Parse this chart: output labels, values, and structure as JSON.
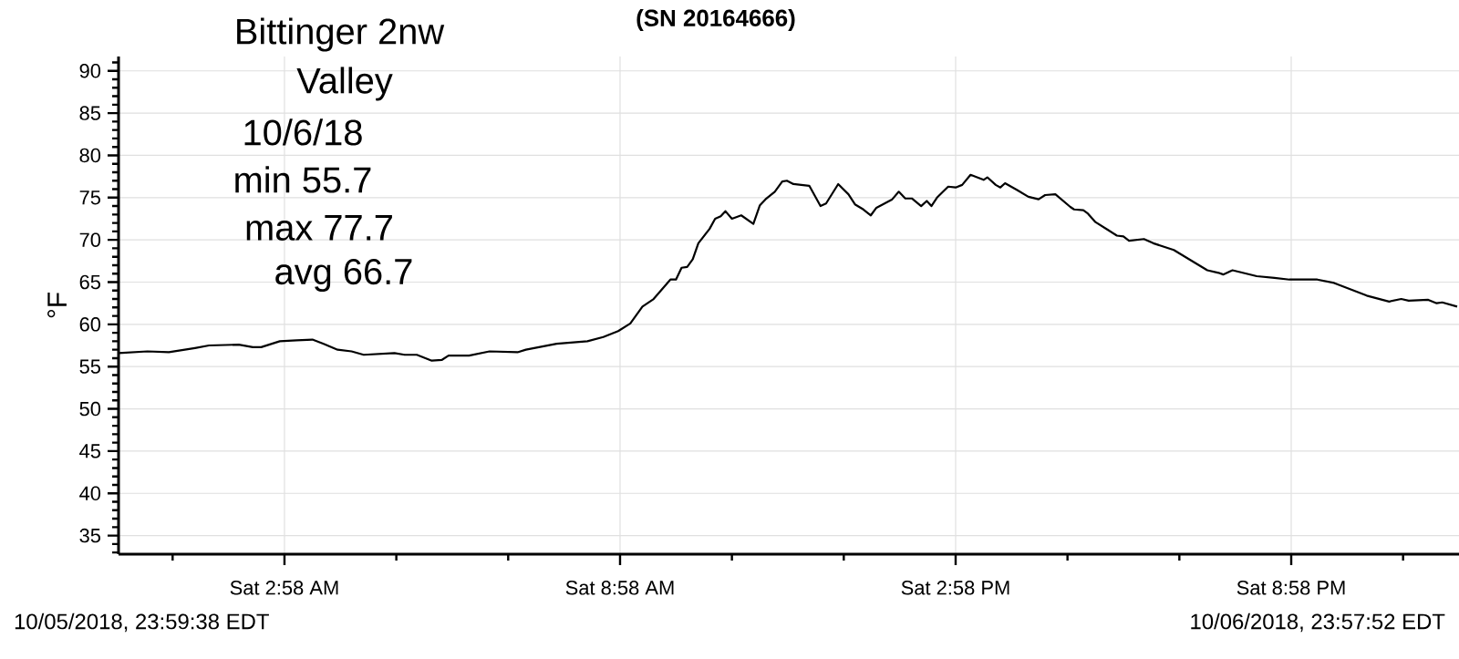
{
  "chart_data": {
    "type": "line",
    "title": "(SN 20164666)",
    "ylabel": "°F",
    "annotations": [
      "Bittinger 2nw",
      "Valley",
      "10/6/18",
      "min 55.7",
      "max 77.7",
      "avg 66.7",
      "10/05/2018, 23:59:38 EDT",
      "10/06/2018, 23:57:52 EDT"
    ],
    "x": [
      "2018-10-06T00:00",
      "2018-10-06T00:31",
      "2018-10-06T00:54",
      "2018-10-06T01:22",
      "2018-10-06T01:37",
      "2018-10-06T02:09",
      "2018-10-06T02:24",
      "2018-10-06T02:33",
      "2018-10-06T02:53",
      "2018-10-06T03:11",
      "2018-10-06T03:28",
      "2018-10-06T03:40",
      "2018-10-06T03:55",
      "2018-10-06T04:10",
      "2018-10-06T04:23",
      "2018-10-06T04:56",
      "2018-10-06T05:07",
      "2018-10-06T05:20",
      "2018-10-06T05:36",
      "2018-10-06T05:47",
      "2018-10-06T05:54",
      "2018-10-06T06:16",
      "2018-10-06T06:38",
      "2018-10-06T07:08",
      "2018-10-06T07:17",
      "2018-10-06T07:50",
      "2018-10-06T08:23",
      "2018-10-06T08:40",
      "2018-10-06T08:56",
      "2018-10-06T09:09",
      "2018-10-06T09:22",
      "2018-10-06T09:34",
      "2018-10-06T09:52",
      "2018-10-06T09:58",
      "2018-10-06T10:04",
      "2018-10-06T10:10",
      "2018-10-06T10:16",
      "2018-10-06T10:22",
      "2018-10-06T10:34",
      "2018-10-06T10:40",
      "2018-10-06T10:46",
      "2018-10-06T10:51",
      "2018-10-06T10:58",
      "2018-10-06T11:08",
      "2018-10-06T11:21",
      "2018-10-06T11:28",
      "2018-10-06T11:34",
      "2018-10-06T11:44",
      "2018-10-06T11:52",
      "2018-10-06T11:57",
      "2018-10-06T12:04",
      "2018-10-06T12:21",
      "2018-10-06T12:33",
      "2018-10-06T12:39",
      "2018-10-06T12:52",
      "2018-10-06T13:03",
      "2018-10-06T13:10",
      "2018-10-06T13:19",
      "2018-10-06T13:27",
      "2018-10-06T13:33",
      "2018-10-06T13:50",
      "2018-10-06T13:57",
      "2018-10-06T14:04",
      "2018-10-06T14:11",
      "2018-10-06T14:21",
      "2018-10-06T14:27",
      "2018-10-06T14:32",
      "2018-10-06T14:38",
      "2018-10-06T14:50",
      "2018-10-06T14:58",
      "2018-10-06T15:05",
      "2018-10-06T15:14",
      "2018-10-06T15:28",
      "2018-10-06T15:32",
      "2018-10-06T15:41",
      "2018-10-06T15:46",
      "2018-10-06T15:51",
      "2018-10-06T16:04",
      "2018-10-06T16:16",
      "2018-10-06T16:27",
      "2018-10-06T16:34",
      "2018-10-06T16:45",
      "2018-10-06T17:01",
      "2018-10-06T17:05",
      "2018-10-06T17:15",
      "2018-10-06T17:20",
      "2018-10-06T17:28",
      "2018-10-06T17:41",
      "2018-10-06T17:51",
      "2018-10-06T17:58",
      "2018-10-06T18:04",
      "2018-10-06T18:20",
      "2018-10-06T18:30",
      "2018-10-06T18:52",
      "2018-10-06T19:13",
      "2018-10-06T19:28",
      "2018-10-06T19:40",
      "2018-10-06T19:45",
      "2018-10-06T19:55",
      "2018-10-06T20:21",
      "2018-10-06T20:40",
      "2018-10-06T20:56",
      "2018-10-06T21:10",
      "2018-10-06T21:26",
      "2018-10-06T21:44",
      "2018-10-06T22:05",
      "2018-10-06T22:19",
      "2018-10-06T22:43",
      "2018-10-06T22:56",
      "2018-10-06T23:04",
      "2018-10-06T23:25",
      "2018-10-06T23:34",
      "2018-10-06T23:40",
      "2018-10-06T23:56"
    ],
    "series": [
      {
        "color": "#000000",
        "values": [
          56.6,
          56.8,
          56.7,
          57.2,
          57.5,
          57.6,
          57.3,
          57.3,
          58.0,
          58.1,
          58.2,
          57.7,
          57.0,
          56.8,
          56.4,
          56.6,
          56.4,
          56.4,
          55.7,
          55.8,
          56.3,
          56.3,
          56.8,
          56.7,
          57.0,
          57.7,
          58.0,
          58.5,
          59.2,
          60.1,
          62.1,
          63.0,
          65.3,
          65.3,
          66.7,
          66.8,
          67.7,
          69.6,
          71.3,
          72.5,
          72.8,
          73.4,
          72.5,
          72.9,
          71.9,
          74.1,
          74.8,
          75.7,
          76.9,
          77.0,
          76.6,
          76.4,
          74.0,
          74.3,
          76.6,
          75.4,
          74.2,
          73.6,
          72.9,
          73.8,
          74.8,
          75.7,
          74.9,
          74.9,
          74.0,
          74.6,
          74.0,
          75.0,
          76.3,
          76.2,
          76.5,
          77.7,
          77.1,
          77.4,
          76.5,
          76.2,
          76.7,
          75.9,
          75.1,
          74.8,
          75.3,
          75.4,
          73.9,
          73.6,
          73.5,
          73.1,
          72.1,
          71.2,
          70.5,
          70.4,
          69.9,
          70.1,
          69.6,
          68.8,
          67.4,
          66.4,
          66.1,
          65.9,
          66.4,
          65.7,
          65.5,
          65.3,
          65.3,
          65.3,
          64.9,
          64.0,
          63.4,
          62.7,
          63.0,
          62.8,
          62.9,
          62.5,
          62.6,
          62.1
        ]
      }
    ],
    "xlim": [
      "2018-10-06T00:00",
      "2018-10-06T23:58"
    ],
    "xticks": [
      {
        "value": "2018-10-06T00:58",
        "label": null
      },
      {
        "value": "2018-10-06T02:58",
        "label": "Sat 2:58 AM"
      },
      {
        "value": "2018-10-06T04:58",
        "label": null
      },
      {
        "value": "2018-10-06T06:58",
        "label": null
      },
      {
        "value": "2018-10-06T08:58",
        "label": "Sat 8:58 AM"
      },
      {
        "value": "2018-10-06T10:58",
        "label": null
      },
      {
        "value": "2018-10-06T12:58",
        "label": null
      },
      {
        "value": "2018-10-06T14:58",
        "label": "Sat 2:58 PM"
      },
      {
        "value": "2018-10-06T16:58",
        "label": null
      },
      {
        "value": "2018-10-06T18:58",
        "label": null
      },
      {
        "value": "2018-10-06T20:58",
        "label": "Sat 8:58 PM"
      },
      {
        "value": "2018-10-06T22:58",
        "label": null
      }
    ],
    "ylim": [
      32.8,
      91.7
    ],
    "yticks": [
      {
        "value": 33,
        "label": null
      },
      {
        "value": 34,
        "label": null
      },
      35,
      {
        "value": 36,
        "label": null
      },
      {
        "value": 37,
        "label": null
      },
      {
        "value": 38,
        "label": null
      },
      {
        "value": 39,
        "label": null
      },
      40,
      {
        "value": 41,
        "label": null
      },
      {
        "value": 42,
        "label": null
      },
      {
        "value": 43,
        "label": null
      },
      {
        "value": 44,
        "label": null
      },
      45,
      {
        "value": 46,
        "label": null
      },
      {
        "value": 47,
        "label": null
      },
      {
        "value": 48,
        "label": null
      },
      {
        "value": 49,
        "label": null
      },
      50,
      {
        "value": 51,
        "label": null
      },
      {
        "value": 52,
        "label": null
      },
      {
        "value": 53,
        "label": null
      },
      {
        "value": 54,
        "label": null
      },
      55,
      {
        "value": 56,
        "label": null
      },
      {
        "value": 57,
        "label": null
      },
      {
        "value": 58,
        "label": null
      },
      {
        "value": 59,
        "label": null
      },
      60,
      {
        "value": 61,
        "label": null
      },
      {
        "value": 62,
        "label": null
      },
      {
        "value": 63,
        "label": null
      },
      {
        "value": 64,
        "label": null
      },
      65,
      {
        "value": 66,
        "label": null
      },
      {
        "value": 67,
        "label": null
      },
      {
        "value": 68,
        "label": null
      },
      {
        "value": 69,
        "label": null
      },
      70,
      {
        "value": 71,
        "label": null
      },
      {
        "value": 72,
        "label": null
      },
      {
        "value": 73,
        "label": null
      },
      {
        "value": 74,
        "label": null
      },
      75,
      {
        "value": 76,
        "label": null
      },
      {
        "value": 77,
        "label": null
      },
      {
        "value": 78,
        "label": null
      },
      {
        "value": 79,
        "label": null
      },
      80,
      {
        "value": 81,
        "label": null
      },
      {
        "value": 82,
        "label": null
      },
      {
        "value": 83,
        "label": null
      },
      {
        "value": 84,
        "label": null
      },
      85,
      {
        "value": 86,
        "label": null
      },
      {
        "value": 87,
        "label": null
      },
      {
        "value": 88,
        "label": null
      },
      {
        "value": 89,
        "label": null
      },
      90,
      {
        "value": 91,
        "label": null
      }
    ],
    "grid": true
  }
}
